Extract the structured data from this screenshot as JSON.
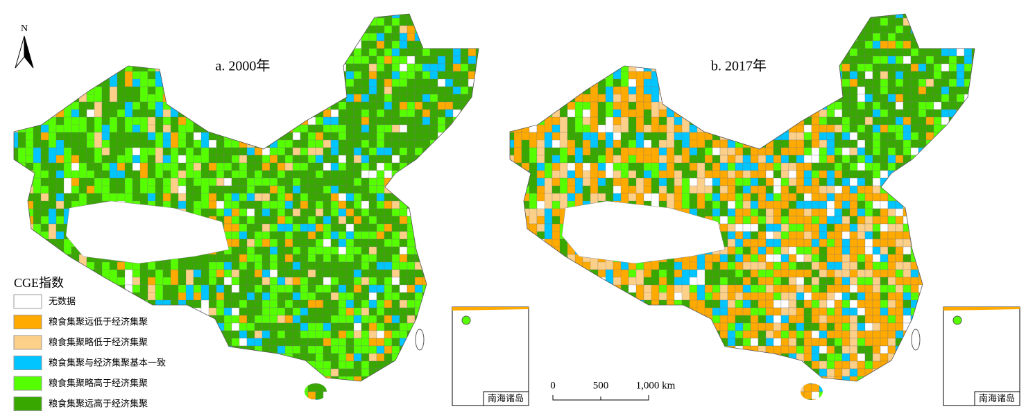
{
  "north_arrow": "N",
  "maps": [
    {
      "title": "a. 2000年",
      "inset_label": "南海诸岛"
    },
    {
      "title": "b. 2017年",
      "inset_label": "南海诸岛"
    }
  ],
  "legend": {
    "title": "CGE指数",
    "items": [
      {
        "name": "无数据",
        "color": "#ffffff"
      },
      {
        "name": "粮食集聚远低于经济集聚",
        "color": "#ffaa00"
      },
      {
        "name": "粮食集聚略低于经济集聚",
        "color": "#fdd08a"
      },
      {
        "name": "粮食集聚与经济集聚基本一致",
        "color": "#00c5ff"
      },
      {
        "name": "粮食集聚略高于经济集聚",
        "color": "#55ff00"
      },
      {
        "name": "粮食集聚远高于经济集聚",
        "color": "#38a800"
      }
    ]
  },
  "scale_bar": {
    "labels": [
      "0",
      "500",
      "1,000 km"
    ]
  }
}
